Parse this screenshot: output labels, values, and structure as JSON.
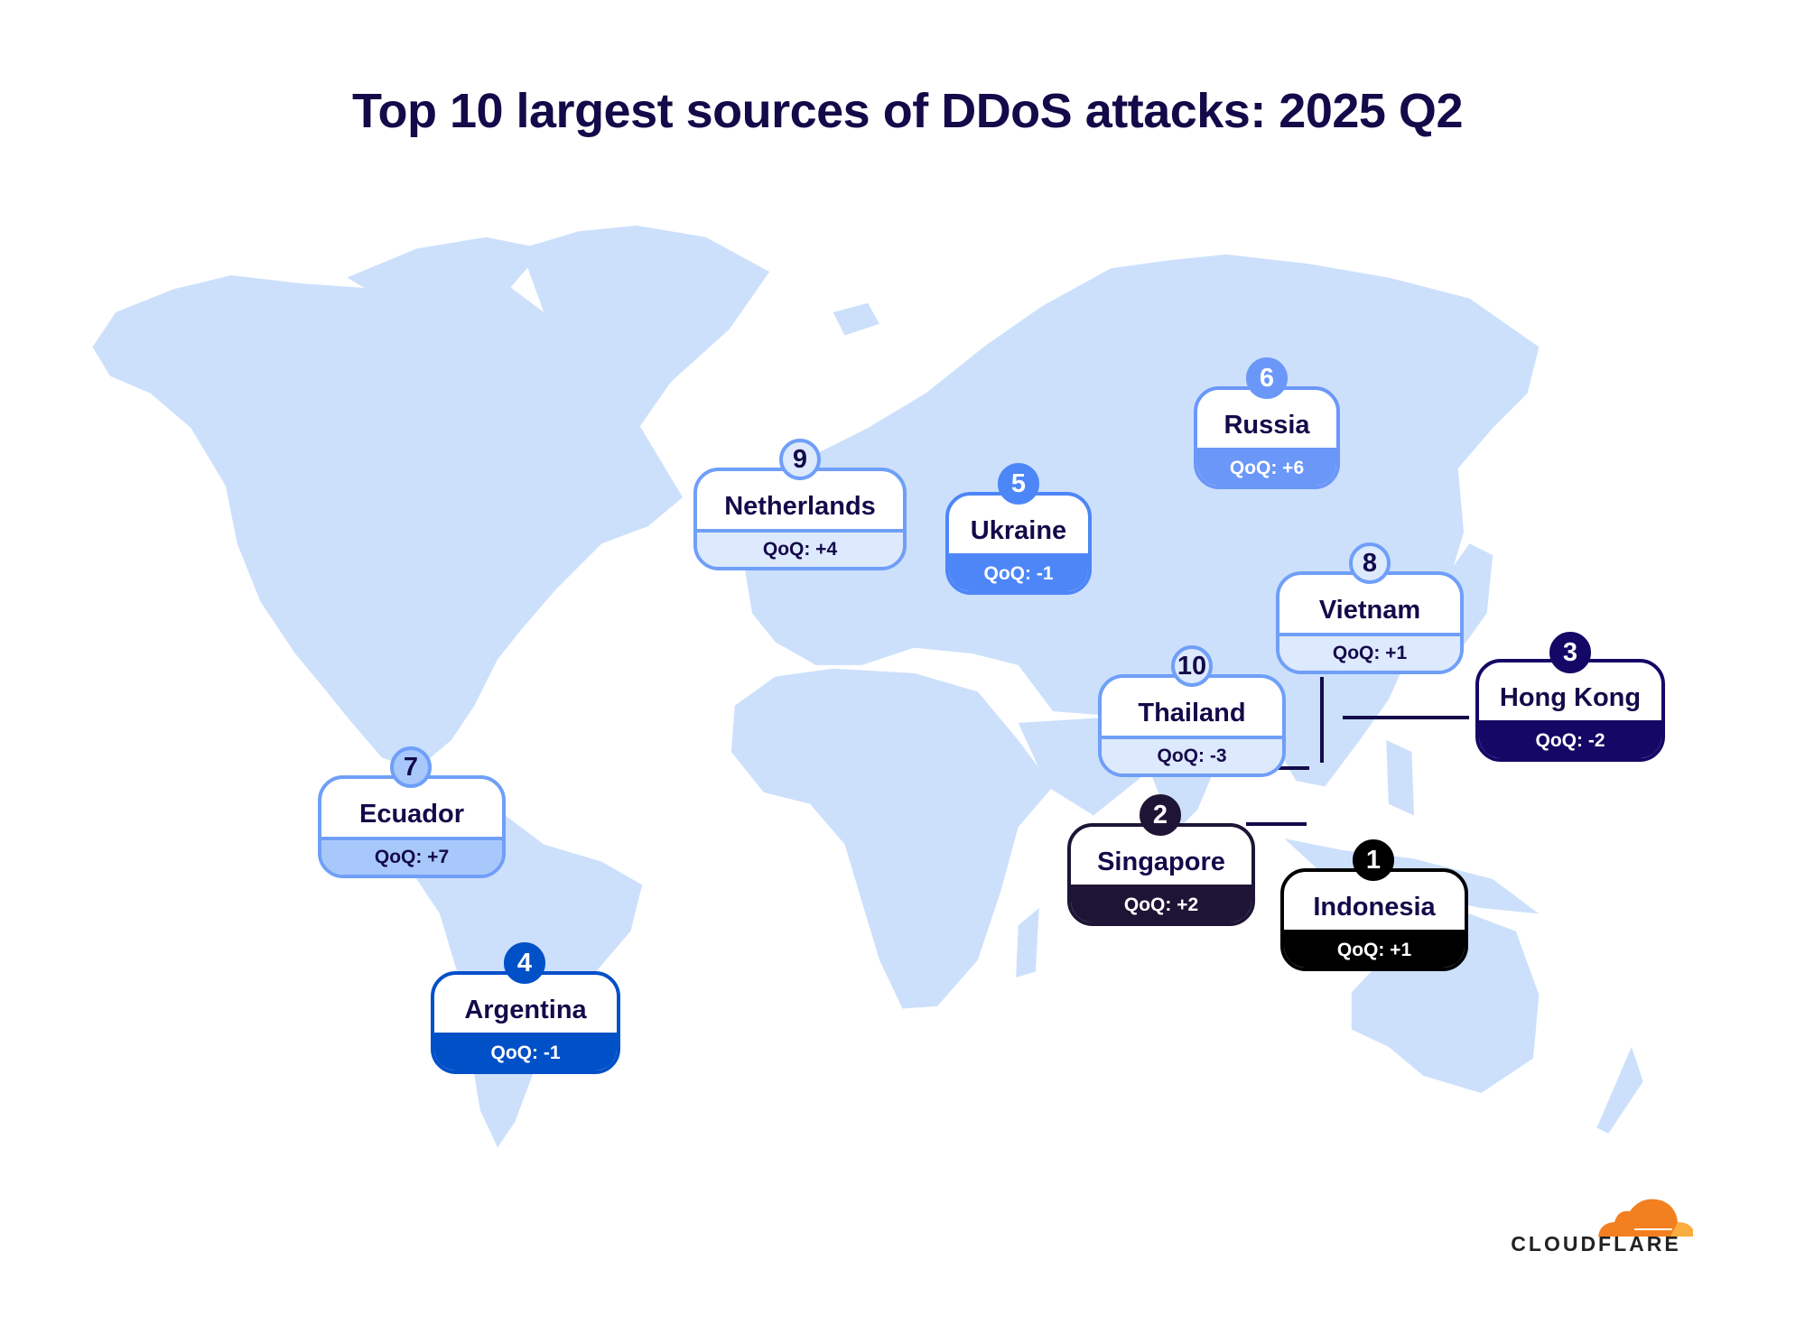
{
  "title": "Top 10 largest sources of DDoS attacks: 2025 Q2",
  "colors": {
    "land": "#cce0fc",
    "title_text": "#140a4a",
    "border_light": "#6f9ff8",
    "cloudflare_orange": "#f38020",
    "cloudflare_light_orange": "#faae40"
  },
  "countries": [
    {
      "rank": "1",
      "name": "Indonesia",
      "qoq": "QoQ: +1",
      "color": "#000000"
    },
    {
      "rank": "2",
      "name": "Singapore",
      "qoq": "QoQ: +2",
      "color": "#1e1536"
    },
    {
      "rank": "3",
      "name": "Hong Kong",
      "qoq": "QoQ: -2",
      "color": "#140866"
    },
    {
      "rank": "4",
      "name": "Argentina",
      "qoq": "QoQ: -1",
      "color": "#0050c8"
    },
    {
      "rank": "5",
      "name": "Ukraine",
      "qoq": "QoQ: -1",
      "color": "#4d86f7"
    },
    {
      "rank": "6",
      "name": "Russia",
      "qoq": "QoQ: +6",
      "color": "#6b97f8"
    },
    {
      "rank": "7",
      "name": "Ecuador",
      "qoq": "QoQ: +7",
      "color": "#a8c8fb"
    },
    {
      "rank": "8",
      "name": "Vietnam",
      "qoq": "QoQ: +1",
      "color": "#dde9fd"
    },
    {
      "rank": "9",
      "name": "Netherlands",
      "qoq": "QoQ: +4",
      "color": "#dde9fd"
    },
    {
      "rank": "10",
      "name": "Thailand",
      "qoq": "QoQ: -3",
      "color": "#dde9fd"
    }
  ],
  "logo": {
    "text": "CLOUDFLARE",
    "icon": "cloud-icon"
  }
}
